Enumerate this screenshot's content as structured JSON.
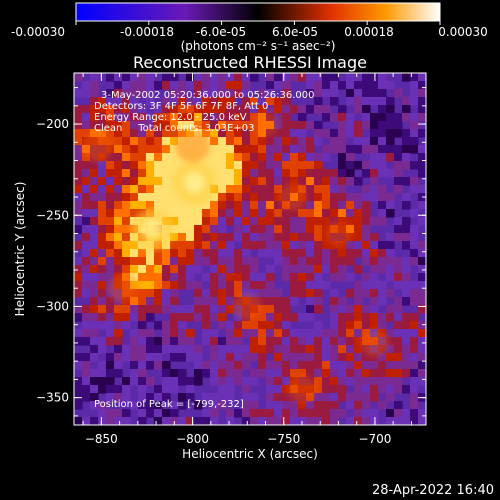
{
  "colorbar": {
    "tick_labels": [
      "-0.00030",
      "-0.00018",
      "-6.0e-05",
      "6.0e-05",
      "0.00018",
      "0.00030"
    ],
    "units_label": "(photons cm⁻² s⁻¹ asec⁻²)",
    "range": [
      -0.0003,
      0.0003
    ],
    "colors": {
      "min": "#0000ff",
      "low": "#5a1aa8",
      "mid": "#000000",
      "high": "#e03000",
      "top": "#ffffff"
    }
  },
  "image": {
    "title": "Reconstructed RHESSI Image",
    "info_lines": [
      "3-May-2002 05:20:36.000 to 05:26:36.000",
      "Detectors: 3F 4F 5F 6F 7F 8F, Att 0",
      "Energy Range: 12.0 - 25.0 keV",
      "Clean     Total counts: 3.03E+03"
    ],
    "peak_label": "Position of Peak = [-799,-232]",
    "peak_position": [
      -799,
      -232
    ]
  },
  "chart_data": {
    "type": "heatmap",
    "title": "Reconstructed RHESSI Image",
    "xlabel": "Heliocentric X (arcsec)",
    "ylabel": "Heliocentric Y (arcsec)",
    "xlim": [
      -865,
      -672
    ],
    "ylim": [
      -365,
      -172
    ],
    "x_ticks": [
      -850,
      -800,
      -750,
      -700
    ],
    "y_ticks": [
      -200,
      -250,
      -300,
      -350
    ],
    "x_tick_labels": [
      "−850",
      "−800",
      "−750",
      "−700"
    ],
    "y_tick_labels": [
      "−200",
      "−250",
      "−300",
      "−350"
    ],
    "value_range": [
      -0.0003,
      0.0003
    ],
    "bright_sources": [
      {
        "x": -799,
        "y": -232,
        "strength": 1.0
      },
      {
        "x": -822,
        "y": -258,
        "strength": 0.95
      },
      {
        "x": -800,
        "y": -212,
        "strength": 0.7
      },
      {
        "x": -852,
        "y": -212,
        "strength": 0.6
      },
      {
        "x": -838,
        "y": -290,
        "strength": 0.55
      },
      {
        "x": -770,
        "y": -300,
        "strength": 0.5
      },
      {
        "x": -745,
        "y": -240,
        "strength": 0.5
      },
      {
        "x": -720,
        "y": -260,
        "strength": 0.45
      },
      {
        "x": -700,
        "y": -320,
        "strength": 0.5
      },
      {
        "x": -740,
        "y": -345,
        "strength": 0.5
      },
      {
        "x": -760,
        "y": -200,
        "strength": 0.4
      }
    ]
  },
  "footer": {
    "timestamp": "28-Apr-2022 16:40"
  }
}
